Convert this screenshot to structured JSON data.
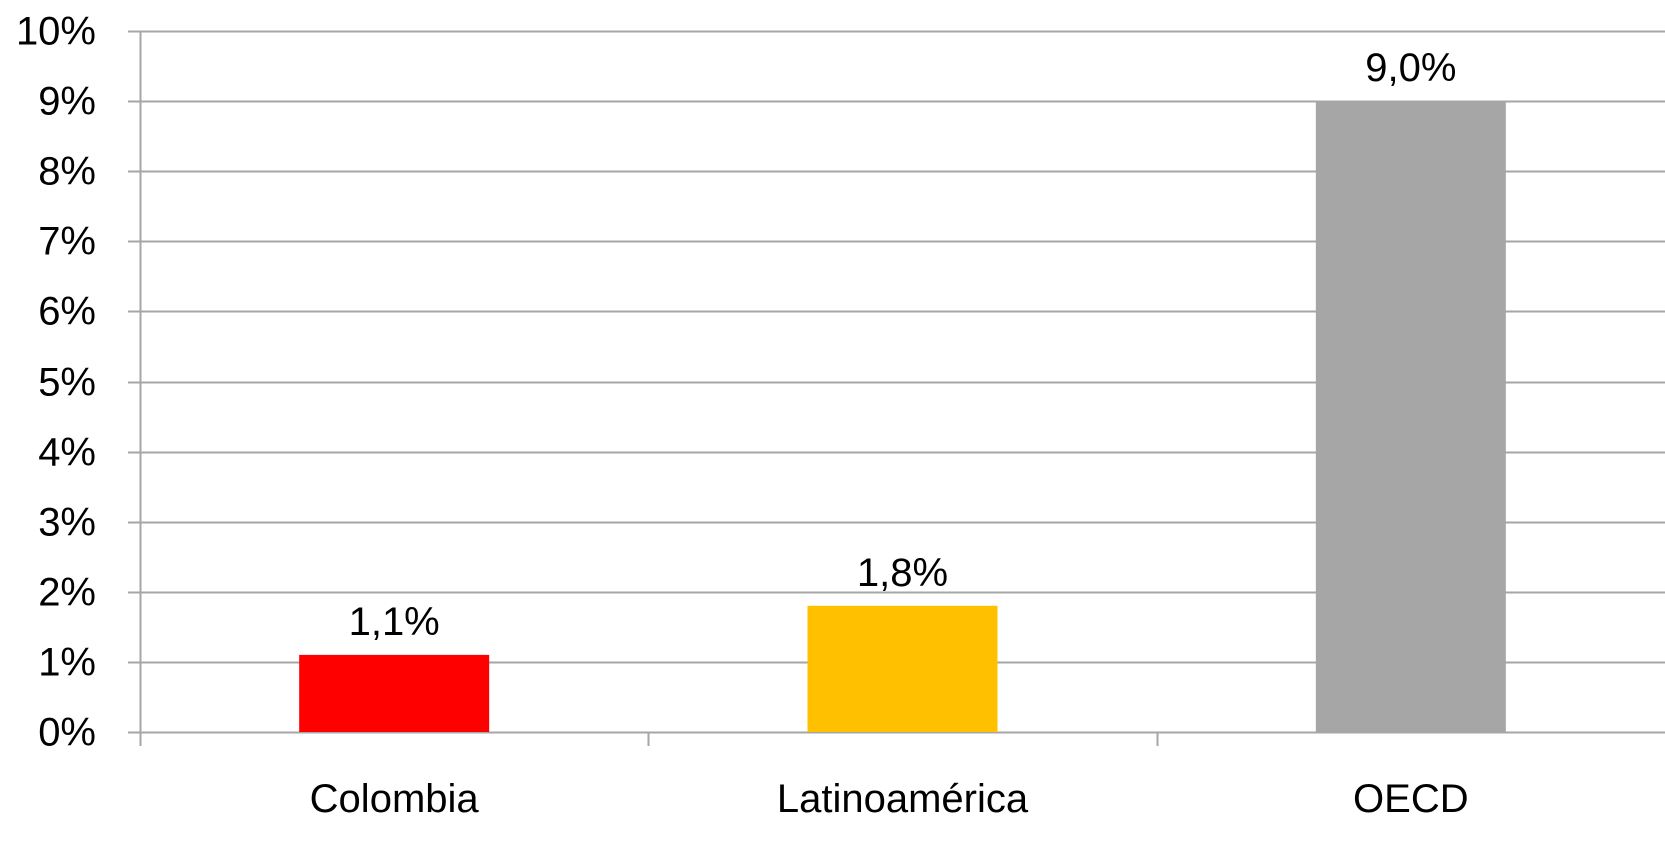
{
  "chart_data": {
    "type": "bar",
    "title": "",
    "xlabel": "",
    "ylabel": "",
    "categories": [
      "Colombia",
      "Latinoamérica",
      "OECD"
    ],
    "values": [
      1.1,
      1.8,
      9.0
    ],
    "data_labels": [
      "1,1%",
      "1,8%",
      "9,0%"
    ],
    "colors": [
      "#FF0000",
      "#FFC000",
      "#A6A6A6"
    ],
    "ylim": [
      0,
      10
    ],
    "yticks": [
      0,
      1,
      2,
      3,
      4,
      5,
      6,
      7,
      8,
      9,
      10
    ],
    "ytick_labels": [
      "0%",
      "1%",
      "2%",
      "3%",
      "4%",
      "5%",
      "6%",
      "7%",
      "8%",
      "9%",
      "10%"
    ],
    "grid": true,
    "legend": "none",
    "gridline_color": "#A6A6A6",
    "axis_color": "#A6A6A6"
  }
}
